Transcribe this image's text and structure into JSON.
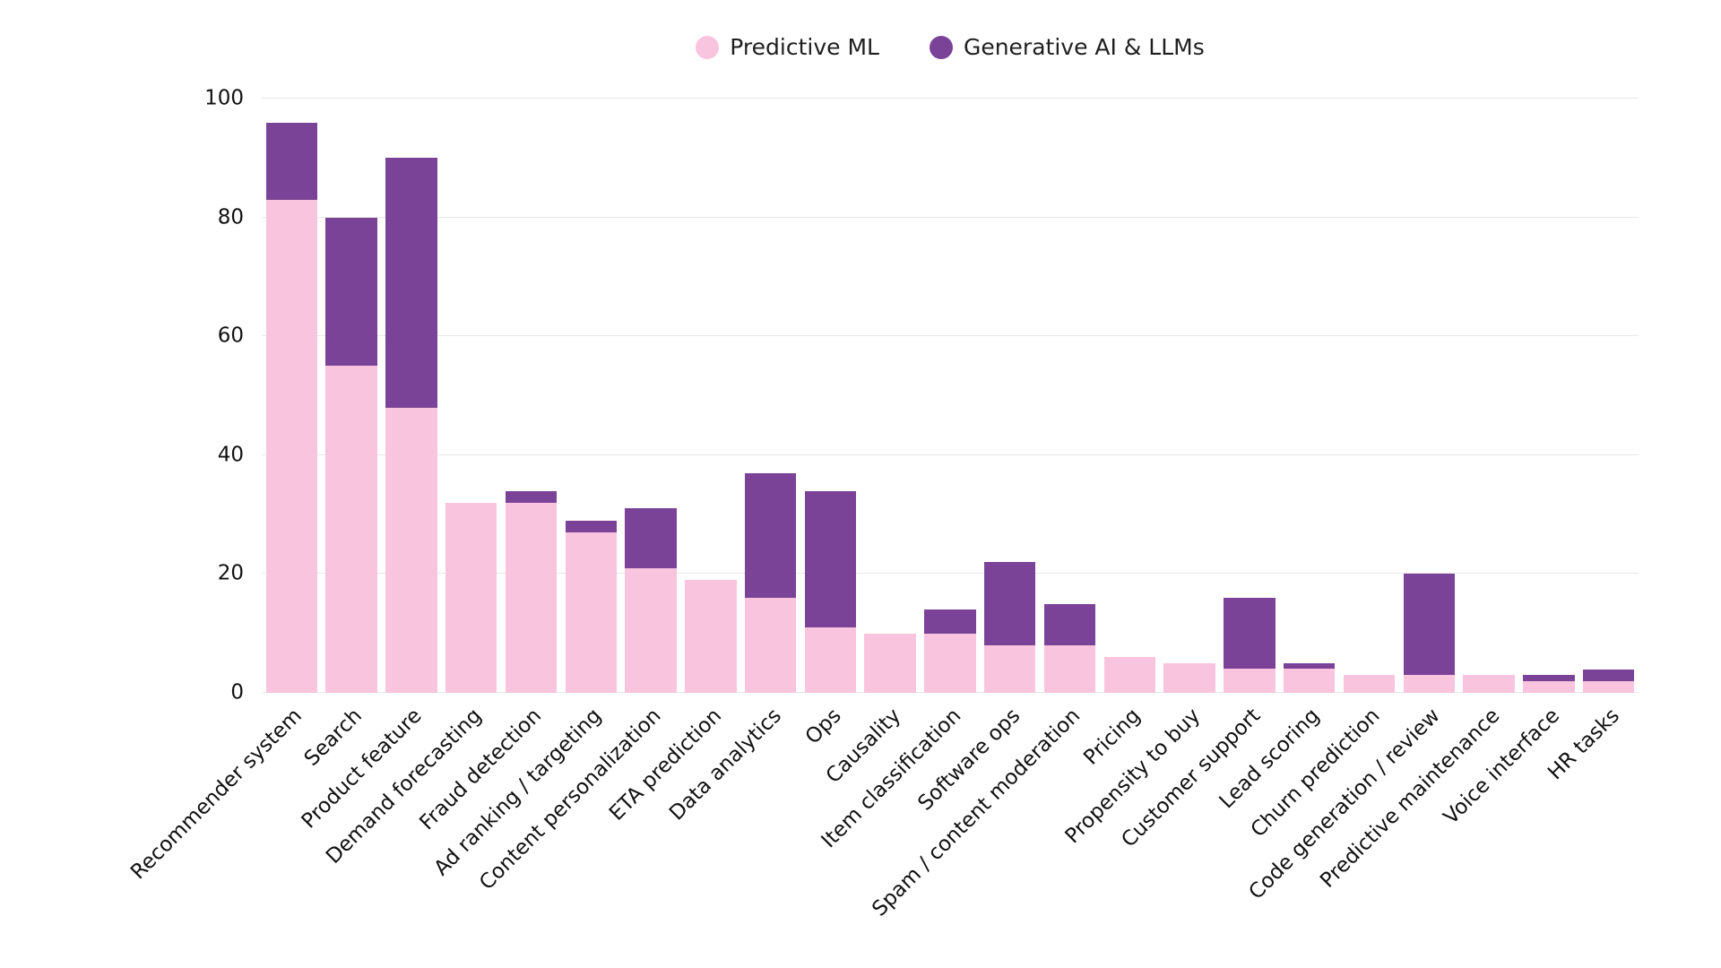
{
  "legend": {
    "items": [
      {
        "label": "Predictive ML"
      },
      {
        "label": "Generative AI & LLMs"
      }
    ]
  },
  "chart_data": {
    "type": "bar",
    "stacked": true,
    "title": "",
    "xlabel": "",
    "ylabel": "",
    "ylim": [
      0,
      100
    ],
    "y_ticks": [
      0,
      20,
      40,
      60,
      80,
      100
    ],
    "grid": true,
    "legend_position": "top",
    "categories": [
      "Recommender system",
      "Search",
      "Product feature",
      "Demand forecasting",
      "Fraud detection",
      "Ad ranking / targeting",
      "Content personalization",
      "ETA prediction",
      "Data analytics",
      "Ops",
      "Causality",
      "Item classification",
      "Software ops",
      "Spam / content moderation",
      "Pricing",
      "Propensity to buy",
      "Customer support",
      "Lead scoring",
      "Churn prediction",
      "Code generation / review",
      "Predictive maintenance",
      "Voice interface",
      "HR tasks"
    ],
    "series": [
      {
        "name": "Predictive ML",
        "color": "#f9c4dd",
        "values": [
          83,
          55,
          48,
          32,
          32,
          27,
          21,
          19,
          16,
          11,
          10,
          10,
          8,
          8,
          6,
          5,
          4,
          4,
          3,
          3,
          3,
          2,
          2
        ]
      },
      {
        "name": "Generative AI & LLMs",
        "color": "#7b4397",
        "values": [
          13,
          25,
          42,
          0,
          2,
          2,
          10,
          0,
          21,
          23,
          0,
          4,
          14,
          7,
          0,
          0,
          12,
          1,
          0,
          17,
          0,
          1,
          2
        ]
      }
    ]
  }
}
